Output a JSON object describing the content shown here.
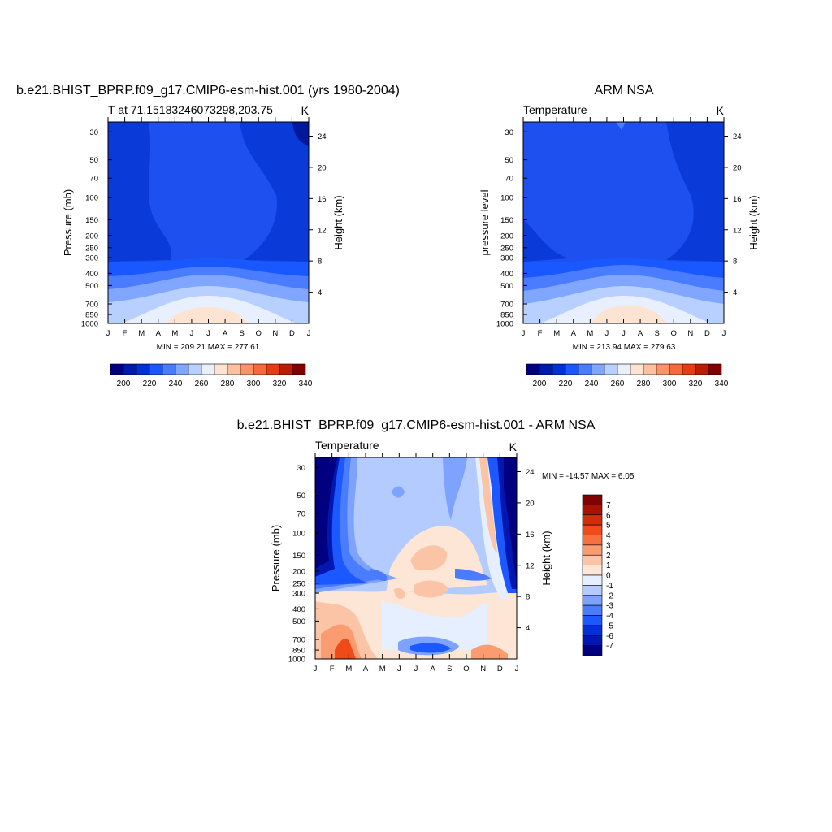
{
  "chart_data": [
    {
      "type": "heatmap",
      "title": "b.e21.BHIST_BPRP.f09_g17.CMIP6-esm-hist.001 (yrs 1980-2004)",
      "subtitle_left": "T at 71.15183246073298,203.75",
      "subtitle_right": "K",
      "ylabel": "Pressure (mb)",
      "ylabel_right": "Height (km)",
      "x_ticks": [
        "J",
        "F",
        "M",
        "A",
        "M",
        "J",
        "J",
        "A",
        "S",
        "O",
        "N",
        "D",
        "J"
      ],
      "y_ticks": [
        "30",
        "50",
        "70",
        "100",
        "150",
        "200",
        "250",
        "300",
        "400",
        "500",
        "700",
        "850",
        "1000"
      ],
      "y_right_ticks": [
        "24",
        "20",
        "16",
        "12",
        "8",
        "4"
      ],
      "stats": "MIN = 209.21 MAX = 277.61",
      "colorbar_labels": [
        "200",
        "220",
        "240",
        "260",
        "280",
        "300",
        "320",
        "340"
      ]
    },
    {
      "type": "heatmap",
      "title": "ARM NSA",
      "subtitle_left": "Temperature",
      "subtitle_right": "K",
      "ylabel": "pressure level",
      "ylabel_right": "Height (km)",
      "x_ticks": [
        "J",
        "F",
        "M",
        "A",
        "M",
        "J",
        "J",
        "A",
        "S",
        "O",
        "N",
        "D",
        "J"
      ],
      "y_ticks": [
        "30",
        "50",
        "70",
        "100",
        "150",
        "200",
        "250",
        "300",
        "400",
        "500",
        "700",
        "850",
        "1000"
      ],
      "y_right_ticks": [
        "24",
        "20",
        "16",
        "12",
        "8",
        "4"
      ],
      "stats": "MIN = 213.94 MAX = 279.63",
      "colorbar_labels": [
        "200",
        "220",
        "240",
        "260",
        "280",
        "300",
        "320",
        "340"
      ]
    },
    {
      "type": "heatmap",
      "title": "b.e21.BHIST_BPRP.f09_g17.CMIP6-esm-hist.001 - ARM NSA",
      "subtitle_left": "Temperature",
      "subtitle_right": "K",
      "ylabel": "Pressure (mb)",
      "ylabel_right": "Height (km)",
      "x_ticks": [
        "J",
        "F",
        "M",
        "A",
        "M",
        "J",
        "J",
        "A",
        "S",
        "O",
        "N",
        "D",
        "J"
      ],
      "y_ticks": [
        "30",
        "50",
        "70",
        "100",
        "150",
        "200",
        "250",
        "300",
        "400",
        "500",
        "700",
        "850",
        "1000"
      ],
      "y_right_ticks": [
        "24",
        "20",
        "16",
        "12",
        "8",
        "4"
      ],
      "stats": "MIN = -14.57 MAX =   6.05",
      "colorbar_labels": [
        "7",
        "6",
        "5",
        "4",
        "3",
        "2",
        "1",
        "0",
        "-1",
        "-2",
        "-3",
        "-4",
        "-5",
        "-6",
        "-7"
      ]
    }
  ],
  "colors": {
    "temp_scale": [
      "#00007f",
      "#0019a8",
      "#0032d2",
      "#1957ff",
      "#4a7cff",
      "#80a6ff",
      "#b8d0ff",
      "#e8f0ff",
      "#fde4d2",
      "#fbc0a0",
      "#f89468",
      "#f46a3b",
      "#e43d12",
      "#b91d03",
      "#800000"
    ],
    "diff_scale": [
      "#000080",
      "#0018b0",
      "#0030d8",
      "#1c58ff",
      "#4a7cff",
      "#7ea2ff",
      "#b4cbff",
      "#e6efff",
      "#fde6d6",
      "#fcc4a6",
      "#fa9c70",
      "#f67040",
      "#ef4a18",
      "#d42c08",
      "#a81200",
      "#800000"
    ]
  }
}
